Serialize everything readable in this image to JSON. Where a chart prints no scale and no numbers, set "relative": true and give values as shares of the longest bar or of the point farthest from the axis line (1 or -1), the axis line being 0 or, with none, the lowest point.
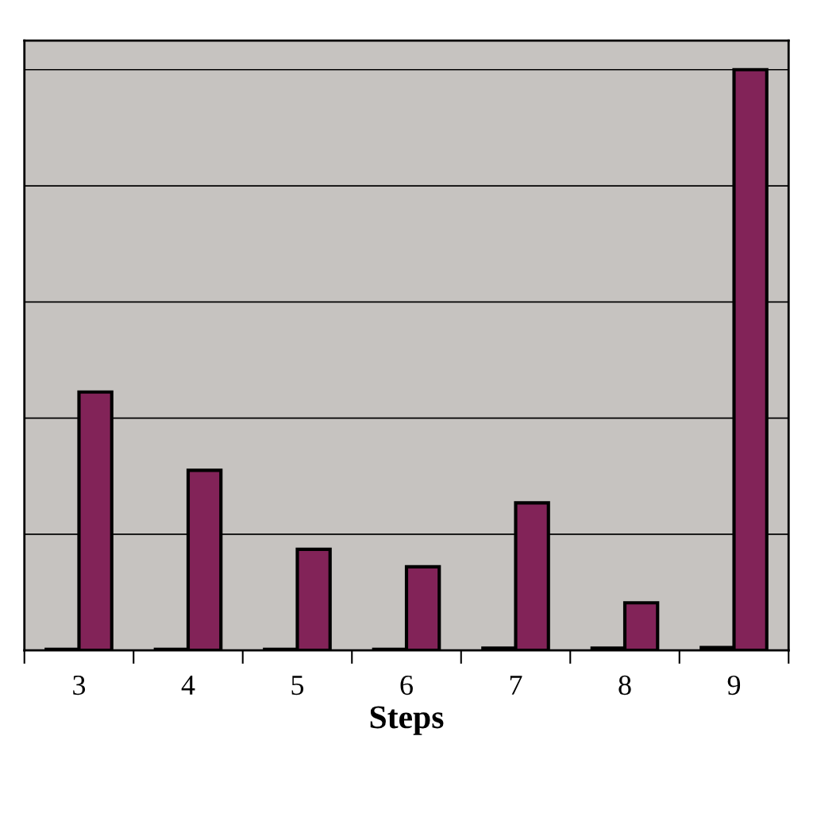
{
  "chart_data": {
    "type": "bar",
    "relative": true,
    "xlabel": "Steps",
    "grid": "y",
    "legend": false,
    "categories": [
      "3",
      "4",
      "5",
      "6",
      "7",
      "8",
      "9"
    ],
    "series": [
      {
        "color": "#822358",
        "values": [
          0.002,
          0.002,
          0.002,
          0.002,
          0.004,
          0.004,
          0.005
        ]
      },
      {
        "color": "#822358",
        "values": [
          0.445,
          0.31,
          0.174,
          0.144,
          0.254,
          0.082,
          1
        ]
      }
    ]
  }
}
